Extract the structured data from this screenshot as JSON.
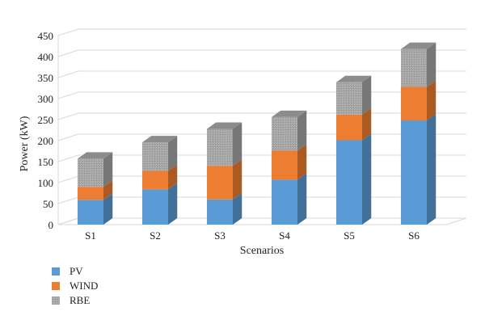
{
  "chart_data": {
    "type": "bar",
    "stacked": true,
    "three_d": true,
    "title": "",
    "xlabel": "Scenarios",
    "ylabel": "Power (kW)",
    "ylim": [
      0,
      450
    ],
    "yticks": [
      0,
      50,
      100,
      150,
      200,
      250,
      300,
      350,
      400,
      450
    ],
    "grid": true,
    "legend_position": "bottom-left",
    "categories": [
      "S1",
      "S2",
      "S3",
      "S4",
      "S5",
      "S6"
    ],
    "series": [
      {
        "name": "PV",
        "color": "#5b9bd5",
        "values": [
          59,
          84,
          60,
          107,
          201,
          248
        ]
      },
      {
        "name": "WIND",
        "color": "#ed7d31",
        "values": [
          31,
          44,
          80,
          69,
          61,
          80
        ]
      },
      {
        "name": "RBE",
        "color": "#a5a5a5",
        "values": [
          67,
          68,
          88,
          80,
          77,
          90
        ]
      }
    ]
  }
}
